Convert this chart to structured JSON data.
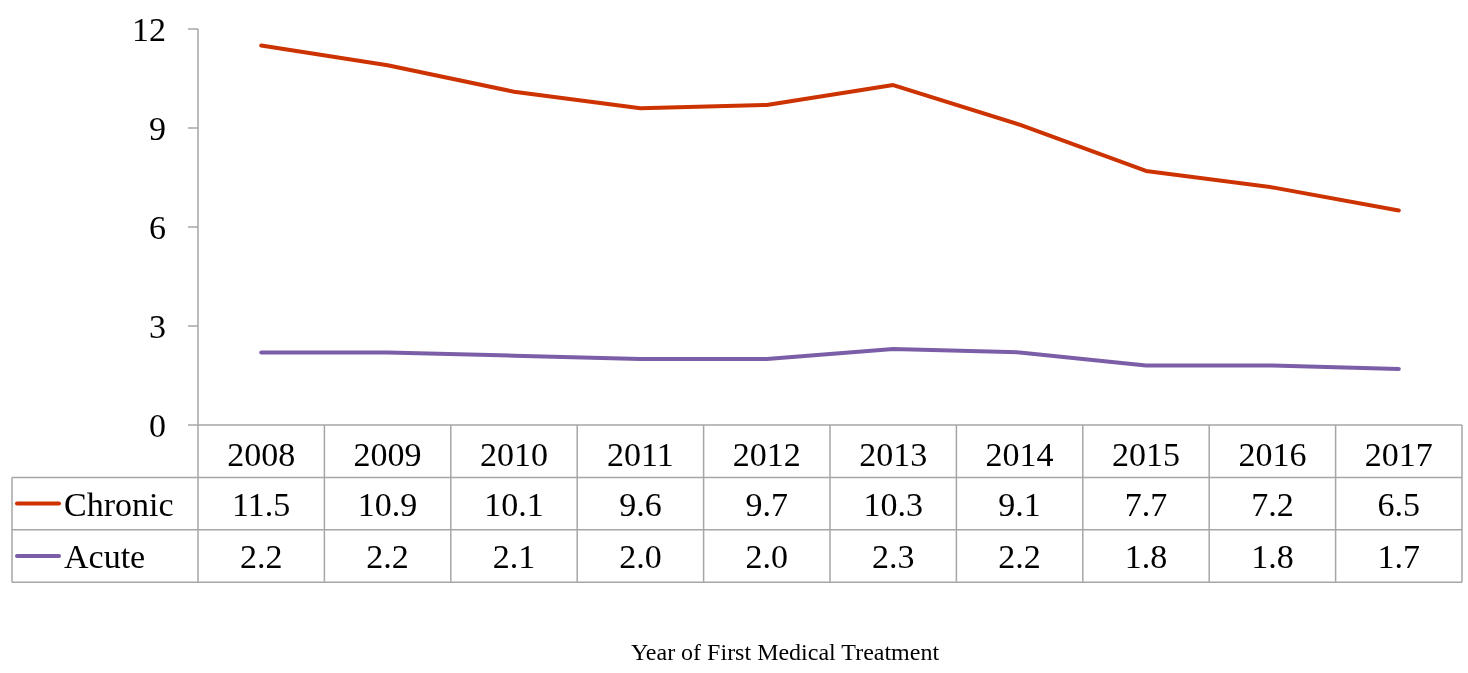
{
  "chart_data": {
    "type": "line",
    "annotations": [
      "Year of First Medical Treatment"
    ],
    "categories": [
      "2008",
      "2009",
      "2010",
      "2011",
      "2012",
      "2013",
      "2014",
      "2015",
      "2016",
      "2017"
    ],
    "series": [
      {
        "name": "Chronic",
        "color": "#cc3300",
        "values": [
          11.5,
          10.9,
          10.1,
          9.6,
          9.7,
          10.3,
          9.1,
          7.7,
          7.2,
          6.5
        ],
        "value_labels": [
          "11.5",
          "10.9",
          "10.1",
          "9.6",
          "9.7",
          "10.3",
          "9.1",
          "7.7",
          "7.2",
          "6.5"
        ]
      },
      {
        "name": "Acute",
        "color": "#7b5ea7",
        "values": [
          2.2,
          2.2,
          2.1,
          2.0,
          2.0,
          2.3,
          2.2,
          1.8,
          1.8,
          1.7
        ],
        "value_labels": [
          "2.2",
          "2.2",
          "2.1",
          "2.0",
          "2.0",
          "2.3",
          "2.2",
          "1.8",
          "1.8",
          "1.7"
        ]
      }
    ],
    "ylim": [
      0,
      12
    ],
    "yticks": [
      0,
      3,
      6,
      9,
      12
    ],
    "legend": "bottom",
    "marker": "none",
    "line_style": "solid"
  }
}
